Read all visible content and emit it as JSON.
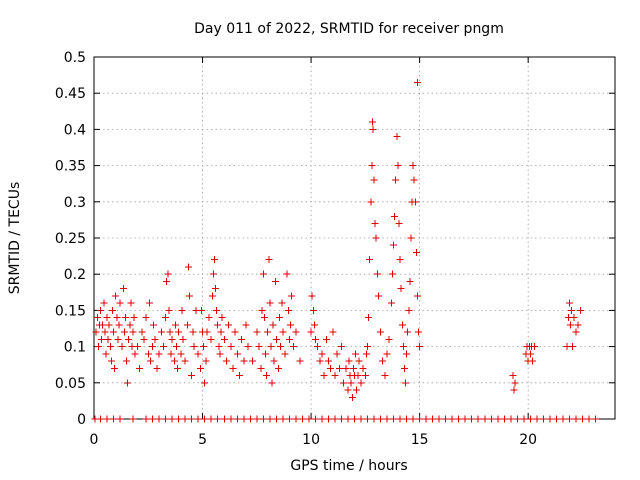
{
  "chart_data": {
    "type": "scatter",
    "title": "Day 011 of 2022, SRMTID for receiver pngm",
    "xlabel": "GPS time / hours",
    "ylabel": "SRMTID / TECUs",
    "xlim": [
      0,
      24
    ],
    "ylim": [
      0,
      0.5
    ],
    "xticks": [
      "0",
      "5",
      "10",
      "15",
      "20"
    ],
    "yticks": [
      "0",
      "0.05",
      "0.1",
      "0.15",
      "0.2",
      "0.25",
      "0.3",
      "0.35",
      "0.4",
      "0.45",
      "0.5"
    ],
    "grid": true,
    "marker": "plus",
    "color": "#e00000",
    "series": [
      {
        "name": "SRMTID",
        "points": [
          [
            0.1,
            0.12
          ],
          [
            0.15,
            0.14
          ],
          [
            0.2,
            0.1
          ],
          [
            0.25,
            0.13
          ],
          [
            0.3,
            0.15
          ],
          [
            0.35,
            0.11
          ],
          [
            0.4,
            0.13
          ],
          [
            0.45,
            0.16
          ],
          [
            0.5,
            0.12
          ],
          [
            0.55,
            0.09
          ],
          [
            0.6,
            0.14
          ],
          [
            0.65,
            0.11
          ],
          [
            0.7,
            0.13
          ],
          [
            0.75,
            0.1
          ],
          [
            0.8,
            0.08
          ],
          [
            0.85,
            0.15
          ],
          [
            0.9,
            0.12
          ],
          [
            0.95,
            0.07
          ],
          [
            1.0,
            0.17
          ],
          [
            1.05,
            0.14
          ],
          [
            1.1,
            0.11
          ],
          [
            1.15,
            0.13
          ],
          [
            1.2,
            0.16
          ],
          [
            1.3,
            0.1
          ],
          [
            1.35,
            0.18
          ],
          [
            1.4,
            0.12
          ],
          [
            1.45,
            0.14
          ],
          [
            1.5,
            0.08
          ],
          [
            1.55,
            0.05
          ],
          [
            1.6,
            0.11
          ],
          [
            1.65,
            0.13
          ],
          [
            1.7,
            0.16
          ],
          [
            1.75,
            0.1
          ],
          [
            1.8,
            0.12
          ],
          [
            1.85,
            0.14
          ],
          [
            1.9,
            0.09
          ],
          [
            2.0,
            0.1
          ],
          [
            2.1,
            0.07
          ],
          [
            2.2,
            0.12
          ],
          [
            2.3,
            0.11
          ],
          [
            2.4,
            0.14
          ],
          [
            2.5,
            0.09
          ],
          [
            2.55,
            0.16
          ],
          [
            2.6,
            0.08
          ],
          [
            2.7,
            0.1
          ],
          [
            2.75,
            0.13
          ],
          [
            2.8,
            0.11
          ],
          [
            2.9,
            0.07
          ],
          [
            3.0,
            0.09
          ],
          [
            3.1,
            0.12
          ],
          [
            3.2,
            0.1
          ],
          [
            3.3,
            0.14
          ],
          [
            3.35,
            0.19
          ],
          [
            3.4,
            0.2
          ],
          [
            3.45,
            0.15
          ],
          [
            3.5,
            0.12
          ],
          [
            3.55,
            0.09
          ],
          [
            3.6,
            0.11
          ],
          [
            3.7,
            0.08
          ],
          [
            3.75,
            0.13
          ],
          [
            3.8,
            0.1
          ],
          [
            3.85,
            0.07
          ],
          [
            3.9,
            0.12
          ],
          [
            4.0,
            0.09
          ],
          [
            4.05,
            0.15
          ],
          [
            4.1,
            0.11
          ],
          [
            4.2,
            0.08
          ],
          [
            4.3,
            0.13
          ],
          [
            4.35,
            0.21
          ],
          [
            4.4,
            0.17
          ],
          [
            4.5,
            0.06
          ],
          [
            4.55,
            0.12
          ],
          [
            4.6,
            0.1
          ],
          [
            4.7,
            0.15
          ],
          [
            4.8,
            0.09
          ],
          [
            4.9,
            0.07
          ],
          [
            4.95,
            0.15
          ],
          [
            5.0,
            0.12
          ],
          [
            5.05,
            0.1
          ],
          [
            5.1,
            0.05
          ],
          [
            5.15,
            0.08
          ],
          [
            5.2,
            0.12
          ],
          [
            5.3,
            0.14
          ],
          [
            5.4,
            0.11
          ],
          [
            5.45,
            0.17
          ],
          [
            5.5,
            0.2
          ],
          [
            5.55,
            0.22
          ],
          [
            5.6,
            0.18
          ],
          [
            5.65,
            0.15
          ],
          [
            5.7,
            0.13
          ],
          [
            5.75,
            0.1
          ],
          [
            5.8,
            0.09
          ],
          [
            5.85,
            0.12
          ],
          [
            5.9,
            0.14
          ],
          [
            6.0,
            0.11
          ],
          [
            6.1,
            0.08
          ],
          [
            6.2,
            0.13
          ],
          [
            6.3,
            0.1
          ],
          [
            6.4,
            0.07
          ],
          [
            6.5,
            0.12
          ],
          [
            6.6,
            0.09
          ],
          [
            6.7,
            0.06
          ],
          [
            6.8,
            0.11
          ],
          [
            6.9,
            0.08
          ],
          [
            7.0,
            0.13
          ],
          [
            7.1,
            0.1
          ],
          [
            7.3,
            0.08
          ],
          [
            7.5,
            0.12
          ],
          [
            7.6,
            0.1
          ],
          [
            7.7,
            0.07
          ],
          [
            7.75,
            0.15
          ],
          [
            7.8,
            0.2
          ],
          [
            7.85,
            0.14
          ],
          [
            7.9,
            0.09
          ],
          [
            7.95,
            0.06
          ],
          [
            8.0,
            0.12
          ],
          [
            8.05,
            0.22
          ],
          [
            8.1,
            0.16
          ],
          [
            8.15,
            0.1
          ],
          [
            8.2,
            0.05
          ],
          [
            8.25,
            0.13
          ],
          [
            8.3,
            0.08
          ],
          [
            8.35,
            0.19
          ],
          [
            8.4,
            0.11
          ],
          [
            8.5,
            0.07
          ],
          [
            8.55,
            0.14
          ],
          [
            8.6,
            0.1
          ],
          [
            8.65,
            0.16
          ],
          [
            8.7,
            0.12
          ],
          [
            8.8,
            0.09
          ],
          [
            8.9,
            0.2
          ],
          [
            8.95,
            0.15
          ],
          [
            9.0,
            0.11
          ],
          [
            9.05,
            0.13
          ],
          [
            9.1,
            0.17
          ],
          [
            9.2,
            0.1
          ],
          [
            9.3,
            0.12
          ],
          [
            9.5,
            0.08
          ],
          [
            10.0,
            0.12
          ],
          [
            10.05,
            0.17
          ],
          [
            10.1,
            0.15
          ],
          [
            10.15,
            0.13
          ],
          [
            10.2,
            0.11
          ],
          [
            10.3,
            0.1
          ],
          [
            10.4,
            0.08
          ],
          [
            10.5,
            0.09
          ],
          [
            10.6,
            0.06
          ],
          [
            10.7,
            0.11
          ],
          [
            10.8,
            0.08
          ],
          [
            10.9,
            0.07
          ],
          [
            11.0,
            0.12
          ],
          [
            11.1,
            0.06
          ],
          [
            11.2,
            0.09
          ],
          [
            11.3,
            0.07
          ],
          [
            11.4,
            0.1
          ],
          [
            11.5,
            0.05
          ],
          [
            11.6,
            0.07
          ],
          [
            11.7,
            0.04
          ],
          [
            11.75,
            0.08
          ],
          [
            11.8,
            0.06
          ],
          [
            11.85,
            0.05
          ],
          [
            11.9,
            0.03
          ],
          [
            11.95,
            0.07
          ],
          [
            12.0,
            0.06
          ],
          [
            12.05,
            0.09
          ],
          [
            12.1,
            0.04
          ],
          [
            12.15,
            0.06
          ],
          [
            12.2,
            0.08
          ],
          [
            12.3,
            0.05
          ],
          [
            12.4,
            0.07
          ],
          [
            12.5,
            0.06
          ],
          [
            12.55,
            0.09
          ],
          [
            12.6,
            0.1
          ],
          [
            12.65,
            0.14
          ],
          [
            12.7,
            0.22
          ],
          [
            12.75,
            0.3
          ],
          [
            12.8,
            0.35
          ],
          [
            12.82,
            0.41
          ],
          [
            12.85,
            0.4
          ],
          [
            12.9,
            0.33
          ],
          [
            12.95,
            0.27
          ],
          [
            13.0,
            0.25
          ],
          [
            13.05,
            0.2
          ],
          [
            13.1,
            0.17
          ],
          [
            13.2,
            0.12
          ],
          [
            13.3,
            0.08
          ],
          [
            13.4,
            0.06
          ],
          [
            13.5,
            0.09
          ],
          [
            13.6,
            0.11
          ],
          [
            13.7,
            0.16
          ],
          [
            13.75,
            0.2
          ],
          [
            13.8,
            0.24
          ],
          [
            13.85,
            0.28
          ],
          [
            13.9,
            0.33
          ],
          [
            13.95,
            0.39
          ],
          [
            14.0,
            0.35
          ],
          [
            14.05,
            0.27
          ],
          [
            14.1,
            0.22
          ],
          [
            14.15,
            0.18
          ],
          [
            14.2,
            0.13
          ],
          [
            14.25,
            0.1
          ],
          [
            14.3,
            0.07
          ],
          [
            14.35,
            0.05
          ],
          [
            14.4,
            0.09
          ],
          [
            14.45,
            0.12
          ],
          [
            14.5,
            0.15
          ],
          [
            14.55,
            0.19
          ],
          [
            14.6,
            0.25
          ],
          [
            14.65,
            0.3
          ],
          [
            14.7,
            0.35
          ],
          [
            14.75,
            0.33
          ],
          [
            14.8,
            0.3
          ],
          [
            14.85,
            0.23
          ],
          [
            14.9,
            0.17
          ],
          [
            14.95,
            0.12
          ],
          [
            15.0,
            0.1
          ],
          [
            14.9,
            0.465
          ],
          [
            19.3,
            0.06
          ],
          [
            19.35,
            0.04
          ],
          [
            19.4,
            0.05
          ],
          [
            19.9,
            0.09
          ],
          [
            19.95,
            0.1
          ],
          [
            20.0,
            0.08
          ],
          [
            20.05,
            0.1
          ],
          [
            20.1,
            0.09
          ],
          [
            20.15,
            0.1
          ],
          [
            20.2,
            0.08
          ],
          [
            20.3,
            0.1
          ],
          [
            21.8,
            0.1
          ],
          [
            21.85,
            0.14
          ],
          [
            21.9,
            0.16
          ],
          [
            21.95,
            0.13
          ],
          [
            22.0,
            0.15
          ],
          [
            22.05,
            0.1
          ],
          [
            22.1,
            0.14
          ],
          [
            22.2,
            0.12
          ],
          [
            22.3,
            0.13
          ],
          [
            22.4,
            0.15
          ]
        ],
        "zero_points": [
          0.05,
          0.3,
          0.6,
          0.9,
          1.2,
          1.8,
          2.4,
          2.7,
          3.0,
          3.3,
          3.6,
          3.9,
          4.2,
          4.5,
          4.8,
          5.1,
          5.4,
          5.7,
          6.0,
          6.3,
          6.6,
          6.9,
          7.2,
          7.5,
          7.8,
          8.1,
          8.4,
          8.7,
          9.0,
          9.3,
          9.6,
          9.9,
          10.2,
          10.5,
          10.8,
          11.1,
          11.4,
          11.7,
          12.0,
          12.3,
          12.6,
          12.9,
          13.2,
          13.5,
          13.8,
          14.1,
          14.4,
          14.7,
          15.0,
          15.3,
          15.6,
          15.9,
          16.2,
          16.5,
          16.8,
          17.1,
          17.4,
          17.7,
          18.0,
          18.3,
          18.6,
          18.9,
          19.2,
          19.5,
          19.8,
          20.1,
          20.4,
          20.7,
          21.0,
          21.3,
          21.6,
          21.9,
          22.2,
          22.5,
          22.8,
          23.1
        ]
      }
    ]
  }
}
